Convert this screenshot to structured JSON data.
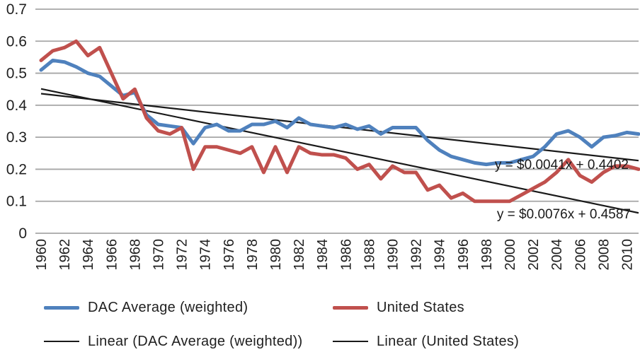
{
  "chart_data": {
    "type": "line",
    "title": "",
    "xlabel": "",
    "ylabel": "",
    "ylim": [
      0,
      0.7
    ],
    "grid": "horizontal-only",
    "legend_position": "bottom",
    "x": [
      1960,
      1961,
      1962,
      1963,
      1964,
      1965,
      1966,
      1967,
      1968,
      1969,
      1970,
      1971,
      1972,
      1973,
      1974,
      1975,
      1976,
      1977,
      1978,
      1979,
      1980,
      1981,
      1982,
      1983,
      1984,
      1985,
      1986,
      1987,
      1988,
      1989,
      1990,
      1991,
      1992,
      1993,
      1994,
      1995,
      1996,
      1997,
      1998,
      1999,
      2000,
      2001,
      2002,
      2003,
      2004,
      2005,
      2006,
      2007,
      2008,
      2009,
      2010,
      2011
    ],
    "x_tick_labels": [
      "1960",
      "1962",
      "1964",
      "1966",
      "1968",
      "1970",
      "1972",
      "1974",
      "1976",
      "1978",
      "1980",
      "1982",
      "1984",
      "1986",
      "1988",
      "1990",
      "1992",
      "1994",
      "1996",
      "1998",
      "2000",
      "2002",
      "2004",
      "2006",
      "2008",
      "2010"
    ],
    "y_tick_labels": [
      "0",
      "0.1",
      "0.2",
      "0.3",
      "0.4",
      "0.5",
      "0.6",
      "0.7"
    ],
    "y_ticks": [
      0,
      0.1,
      0.2,
      0.3,
      0.4,
      0.5,
      0.6,
      0.7
    ],
    "series": [
      {
        "name": "DAC Average (weighted)",
        "color": "#4f81bd",
        "values": [
          0.51,
          0.54,
          0.535,
          0.52,
          0.5,
          0.49,
          0.46,
          0.43,
          0.44,
          0.37,
          0.34,
          0.335,
          0.33,
          0.28,
          0.33,
          0.34,
          0.32,
          0.32,
          0.34,
          0.34,
          0.35,
          0.33,
          0.36,
          0.34,
          0.335,
          0.33,
          0.34,
          0.325,
          0.335,
          0.31,
          0.33,
          0.33,
          0.33,
          0.29,
          0.26,
          0.24,
          0.23,
          0.22,
          0.215,
          0.22,
          0.22,
          0.23,
          0.24,
          0.27,
          0.31,
          0.32,
          0.3,
          0.27,
          0.3,
          0.305,
          0.315,
          0.31
        ]
      },
      {
        "name": "United States",
        "color": "#c0504d",
        "values": [
          0.54,
          0.57,
          0.58,
          0.6,
          0.555,
          0.58,
          0.5,
          0.42,
          0.45,
          0.36,
          0.32,
          0.31,
          0.33,
          0.2,
          0.27,
          0.27,
          0.26,
          0.25,
          0.27,
          0.19,
          0.27,
          0.19,
          0.27,
          0.25,
          0.245,
          0.245,
          0.235,
          0.2,
          0.215,
          0.17,
          0.21,
          0.19,
          0.19,
          0.135,
          0.15,
          0.11,
          0.125,
          0.1,
          0.1,
          0.1,
          0.1,
          0.12,
          0.14,
          0.16,
          0.19,
          0.23,
          0.18,
          0.16,
          0.19,
          0.21,
          0.21,
          0.2
        ]
      }
    ],
    "trendlines": [
      {
        "name": "Linear (DAC Average (weighted))",
        "slope": -0.0041,
        "intercept": 0.4402,
        "label": "y = $0.0041x + 0.4402",
        "color": "#1a1a1a"
      },
      {
        "name": "Linear (United States)",
        "slope": -0.0076,
        "intercept": 0.4587,
        "label": "y = $0.0076x + 0.4587",
        "color": "#1a1a1a"
      }
    ]
  },
  "colors": {
    "dac_line": "#4f81bd",
    "us_line": "#c0504d",
    "trend_line": "#1a1a1a",
    "gridline": "#a6a6a6",
    "text": "#1f1f1f"
  }
}
